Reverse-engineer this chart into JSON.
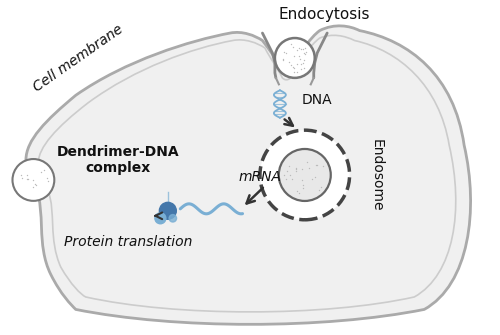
{
  "bg_color": "#ffffff",
  "cell_color": "#f0f0f0",
  "cell_edge_color": "#aaaaaa",
  "blue_light": "#7aafd4",
  "blue_dark": "#4477aa",
  "arrow_color": "#333333",
  "text_color": "#111111",
  "label_cell_membrane": "Cell membrane",
  "label_endocytosis": "Endocytosis",
  "label_dna": "DNA",
  "label_endosome": "Endosome",
  "label_mrna": "mRNA",
  "label_protein": "Protein translation",
  "label_dendrimer": "Dendrimer-DNA\ncomplex",
  "figsize": [
    5.0,
    3.35
  ],
  "dpi": 100
}
